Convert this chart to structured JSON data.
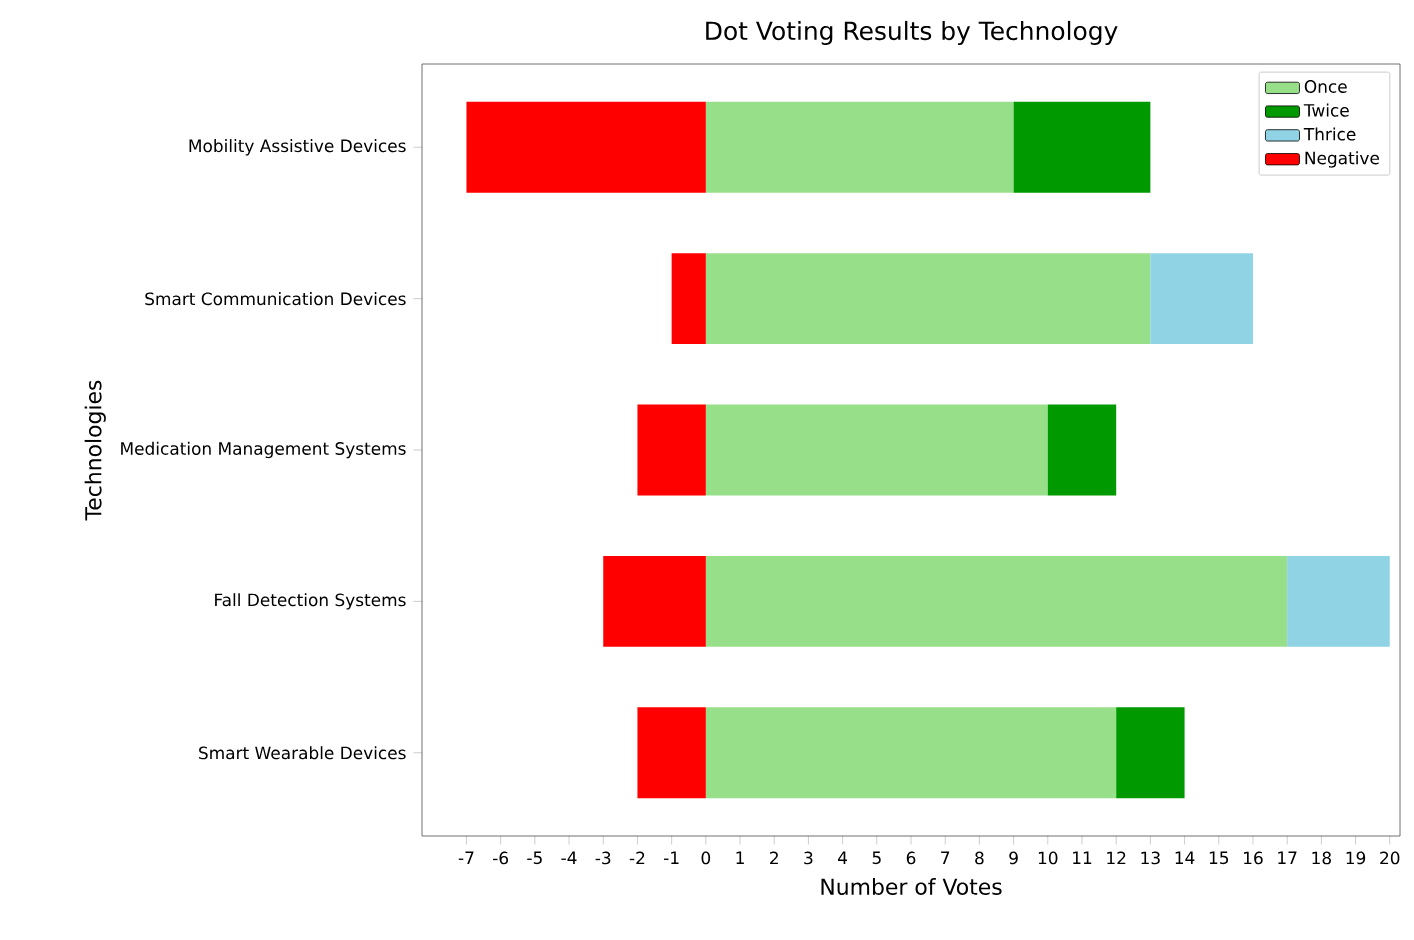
{
  "chart_data": {
    "type": "bar",
    "orientation": "horizontal",
    "stacked": true,
    "title": "Dot Voting Results by Technology",
    "xlabel": "Number of Votes",
    "ylabel": "Technologies",
    "categories": [
      "Mobility Assistive Devices",
      "Smart Communication Devices",
      "Medication Management Systems",
      "Fall Detection Systems",
      "Smart Wearable Devices"
    ],
    "series": [
      {
        "name": "Once",
        "color": "#98df8a",
        "values": [
          9,
          13,
          10,
          17,
          12
        ]
      },
      {
        "name": "Twice",
        "color": "#009a00",
        "values": [
          4,
          0,
          2,
          0,
          2
        ]
      },
      {
        "name": "Thrice",
        "color": "#8fd3e4",
        "values": [
          0,
          3,
          0,
          3,
          0
        ]
      },
      {
        "name": "Negative",
        "color": "#ff0000",
        "values": [
          -7,
          -1,
          -2,
          -3,
          -2
        ]
      }
    ],
    "xlim": [
      -8.3,
      20.3
    ],
    "xticks": [
      -7,
      -6,
      -5,
      -4,
      -3,
      -2,
      -1,
      0,
      1,
      2,
      3,
      4,
      5,
      6,
      7,
      8,
      9,
      10,
      11,
      12,
      13,
      14,
      15,
      16,
      17,
      18,
      19,
      20
    ],
    "legend": "top right",
    "grid": false
  }
}
